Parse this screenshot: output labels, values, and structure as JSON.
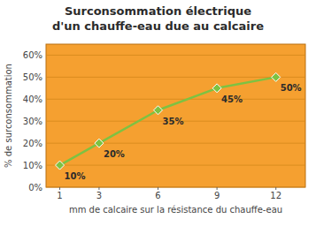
{
  "chart_data": {
    "type": "line",
    "title": "Surconsommation électrique",
    "subtitle": "d'un chauffe-eau due au calcaire",
    "x_label": "mm de calcaire sur la résistance du chauffe-eau",
    "y_label": "% de surconsommation",
    "x": [
      1,
      3,
      6,
      9,
      12
    ],
    "values": [
      10,
      20,
      35,
      45,
      50
    ],
    "value_labels": [
      "10%",
      "20%",
      "35%",
      "45%",
      "50%"
    ],
    "data_labels": true,
    "color": "#7DC242",
    "marker": "diamond",
    "xlim": [
      0.3,
      13.5
    ],
    "xticks": [
      1,
      3,
      6,
      9,
      12
    ],
    "ylim": [
      0,
      65
    ],
    "yticks": [
      {
        "value": 0,
        "label": "0%"
      },
      {
        "value": 10,
        "label": "10%"
      },
      {
        "value": 20,
        "label": "20%"
      },
      {
        "value": 30,
        "label": "30%"
      },
      {
        "value": 40,
        "label": "40%"
      },
      {
        "value": 50,
        "label": "50%"
      },
      {
        "value": 60,
        "label": "60%"
      }
    ],
    "grid": true
  }
}
